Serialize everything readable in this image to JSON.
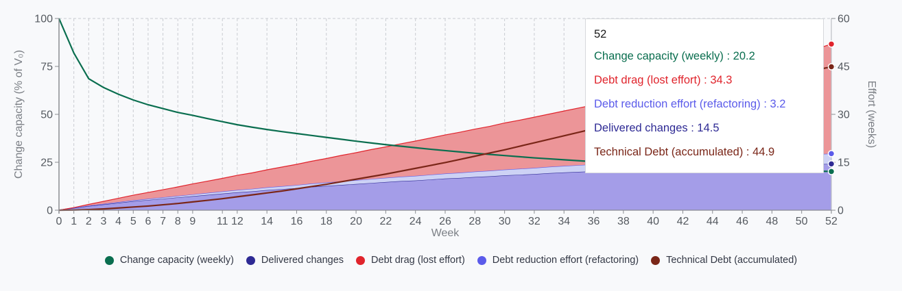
{
  "chart_data": {
    "type": "area",
    "title": "",
    "xlabel": "Week",
    "ylabel_left": "Change capacity (% of V₀)",
    "ylabel_right": "Effort (weeks)",
    "ylim_left": [
      0,
      100
    ],
    "ylim_right": [
      0,
      60
    ],
    "xlim": [
      0,
      52
    ],
    "yticks_left": [
      0,
      25,
      50,
      75,
      100
    ],
    "yticks_right": [
      0,
      15,
      30,
      45,
      60
    ],
    "xticks": [
      0,
      1,
      2,
      3,
      4,
      5,
      6,
      7,
      8,
      9,
      11,
      12,
      14,
      16,
      18,
      20,
      22,
      24,
      26,
      28,
      30,
      32,
      34,
      36,
      38,
      40,
      42,
      44,
      46,
      48,
      50,
      52
    ],
    "grid": "vertical dashed",
    "legend_position": "bottom",
    "x": [
      0,
      1,
      2,
      3,
      4,
      5,
      6,
      7,
      8,
      9,
      10,
      11,
      12,
      13,
      14,
      15,
      16,
      17,
      18,
      19,
      20,
      21,
      22,
      23,
      24,
      25,
      26,
      27,
      28,
      29,
      30,
      31,
      32,
      33,
      34,
      35,
      36,
      37,
      38,
      39,
      40,
      41,
      42,
      43,
      44,
      45,
      46,
      47,
      48,
      49,
      50,
      51,
      52
    ],
    "series": [
      {
        "name": "Change capacity (weekly)",
        "axis": "left",
        "kind": "line",
        "color": "#0a6e4f",
        "values": [
          100,
          82,
          68.6,
          64,
          60.5,
          57.5,
          55,
          53,
          51,
          49.5,
          47.8,
          46.2,
          44.6,
          43.3,
          42.1,
          41,
          40,
          39,
          38,
          37,
          36,
          35.1,
          34.2,
          33.4,
          32.6,
          31.8,
          31.1,
          30.4,
          29.7,
          29.1,
          28.5,
          27.9,
          27.3,
          26.8,
          26.3,
          25.8,
          25.3,
          24.9,
          24.5,
          24.1,
          23.7,
          23.3,
          23,
          22.7,
          22.4,
          22.1,
          21.8,
          21.5,
          21.2,
          21,
          20.7,
          20.4,
          20.2
        ]
      },
      {
        "name": "Delivered changes",
        "axis": "right",
        "kind": "stacked-area",
        "color": "#2e2a94",
        "values": [
          0,
          0.7,
          1.3,
          1.8,
          2.3,
          2.8,
          3.2,
          3.6,
          4.0,
          4.4,
          4.8,
          5.2,
          5.6,
          5.9,
          6.3,
          6.6,
          6.9,
          7.3,
          7.6,
          7.9,
          8.2,
          8.5,
          8.8,
          9.1,
          9.3,
          9.6,
          9.9,
          10.1,
          10.4,
          10.6,
          10.9,
          11.1,
          11.3,
          11.6,
          11.8,
          12.0,
          12.2,
          12.4,
          12.6,
          12.8,
          13.0,
          13.2,
          13.4,
          13.5,
          13.7,
          13.8,
          13.9,
          14.0,
          14.1,
          14.2,
          14.3,
          14.4,
          14.5
        ]
      },
      {
        "name": "Debt reduction effort (refactoring)",
        "axis": "right",
        "kind": "stacked-area",
        "color": "#5b5bea",
        "values": [
          0,
          0.06,
          0.12,
          0.18,
          0.24,
          0.3,
          0.36,
          0.42,
          0.48,
          0.54,
          0.6,
          0.66,
          0.72,
          0.78,
          0.84,
          0.9,
          0.96,
          1.02,
          1.08,
          1.14,
          1.2,
          1.26,
          1.32,
          1.38,
          1.44,
          1.5,
          1.56,
          1.62,
          1.68,
          1.74,
          1.8,
          1.86,
          1.92,
          1.98,
          2.04,
          2.1,
          2.16,
          2.22,
          2.28,
          2.34,
          2.4,
          2.46,
          2.52,
          2.58,
          2.64,
          2.7,
          2.76,
          2.82,
          2.88,
          2.94,
          3.0,
          3.1,
          3.2
        ]
      },
      {
        "name": "Debt drag (lost effort)",
        "axis": "right",
        "kind": "stacked-area",
        "color": "#e0242c",
        "values": [
          0,
          0.05,
          0.4,
          0.8,
          1.2,
          1.6,
          2.0,
          2.4,
          2.8,
          3.3,
          3.7,
          4.1,
          4.6,
          5.0,
          5.5,
          6.0,
          6.5,
          7.0,
          7.5,
          8.1,
          8.6,
          9.2,
          9.7,
          10.3,
          10.9,
          11.5,
          12.1,
          12.7,
          13.3,
          13.9,
          14.6,
          15.2,
          15.9,
          16.5,
          17.2,
          17.9,
          18.6,
          19.3,
          20.0,
          20.8,
          21.5,
          22.3,
          23.0,
          23.8,
          24.6,
          25.4,
          26.2,
          27.6,
          29.0,
          30.4,
          31.8,
          33.0,
          34.3
        ]
      },
      {
        "name": "Technical Debt (accumulated)",
        "axis": "right",
        "kind": "line",
        "color": "#7a2618",
        "values": [
          0,
          0.05,
          0.2,
          0.4,
          0.7,
          1.0,
          1.3,
          1.7,
          2.1,
          2.6,
          3.1,
          3.6,
          4.2,
          4.8,
          5.4,
          6.0,
          6.7,
          7.4,
          8.1,
          8.9,
          9.7,
          10.5,
          11.3,
          12.2,
          13.1,
          14.0,
          14.9,
          15.9,
          16.9,
          17.9,
          18.9,
          20.0,
          21.1,
          22.2,
          23.3,
          24.4,
          25.5,
          26.7,
          27.8,
          29.0,
          30.2,
          31.4,
          32.6,
          33.8,
          35.1,
          36.3,
          37.6,
          38.9,
          40.2,
          41.5,
          42.8,
          43.9,
          44.9
        ]
      }
    ]
  },
  "axes": {
    "left_title": "Change capacity (% of V₀)",
    "right_title": "Effort (weeks)",
    "x_title": "Week"
  },
  "tooltip": {
    "title": "52",
    "rows": [
      {
        "label": "Change capacity (weekly) : 20.2",
        "color": "#0a6e4f"
      },
      {
        "label": "Debt drag (lost effort) : 34.3",
        "color": "#e0242c"
      },
      {
        "label": "Debt reduction effort (refactoring) : 3.2",
        "color": "#5b5bea"
      },
      {
        "label": "Delivered changes : 14.5",
        "color": "#2e2a94"
      },
      {
        "label": "Technical Debt (accumulated) : 44.9",
        "color": "#7a2618"
      }
    ]
  },
  "legend": [
    {
      "label": "Change capacity (weekly)",
      "color": "#0a6e4f"
    },
    {
      "label": "Delivered changes",
      "color": "#2e2a94"
    },
    {
      "label": "Debt drag (lost effort)",
      "color": "#e0242c"
    },
    {
      "label": "Debt reduction effort (refactoring)",
      "color": "#5b5bea"
    },
    {
      "label": "Technical Debt (accumulated)",
      "color": "#7a2618"
    }
  ]
}
